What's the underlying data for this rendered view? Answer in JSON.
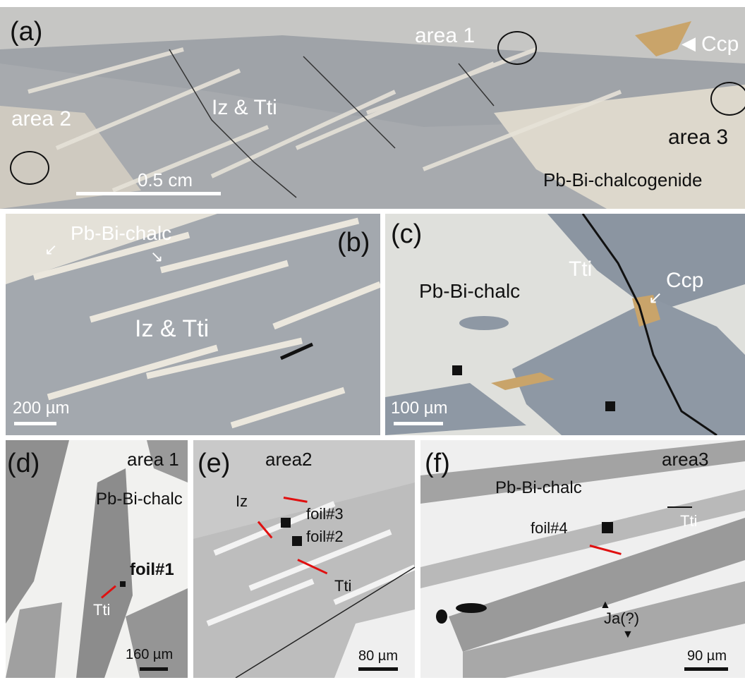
{
  "panels": {
    "a": {
      "letter": "(a)",
      "labels": {
        "area1": "area 1",
        "area2": "area 2",
        "area3": "area 3",
        "iz_tti": "Iz & Tti",
        "ccp": "Ccp",
        "pbbi": "Pb-Bi-chalcogenide"
      },
      "scale": "0.5 cm"
    },
    "b": {
      "letter": "(b)",
      "labels": {
        "pbbi": "Pb-Bi-chalc",
        "iz_tti": "Iz & Tti"
      },
      "scale": "200 µm"
    },
    "c": {
      "letter": "(c)",
      "labels": {
        "pbbi": "Pb-Bi-chalc",
        "tti": "Tti",
        "ccp": "Ccp"
      },
      "scale": "100 µm"
    },
    "d": {
      "letter": "(d)",
      "labels": {
        "area": "area 1",
        "pbbi": "Pb-Bi-chalc",
        "foil": "foil#1",
        "tti": "Tti"
      },
      "scale": "160 µm"
    },
    "e": {
      "letter": "(e)",
      "labels": {
        "area": "area2",
        "iz": "Iz",
        "foil3": "foil#3",
        "foil2": "foil#2",
        "tti": "Tti"
      },
      "scale": "80 µm"
    },
    "f": {
      "letter": "(f)",
      "labels": {
        "area": "area3",
        "pbbi": "Pb-Bi-chalc",
        "foil": "foil#4",
        "tti": "Tti",
        "ja": "Ja(?)"
      },
      "scale": "90 µm"
    }
  },
  "colors": {
    "pbbi_chalc": "#e8e4da",
    "iz_tti": "#9ea4ab",
    "tti_dark": "#7e8792",
    "ccp": "#c9a46a",
    "foil_line": "#e01010"
  }
}
